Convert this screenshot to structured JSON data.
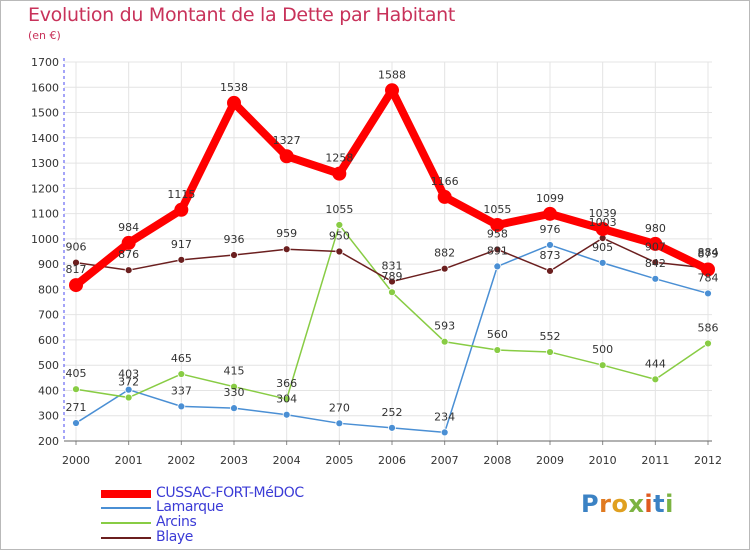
{
  "title": "Evolution du Montant de la Dette par Habitant",
  "subtitle": "(en €)",
  "logo_text": "Proxiti",
  "colors": {
    "title": "#c8325a",
    "legend_text": "#3b3bd6",
    "axis_text": "#333333",
    "grid": "#e4e4e4",
    "y_axis": "#4a4af0"
  },
  "chart_data": {
    "type": "line",
    "x": [
      "2000",
      "2001",
      "2002",
      "2003",
      "2004",
      "2005",
      "2006",
      "2007",
      "2008",
      "2009",
      "2010",
      "2011",
      "2012"
    ],
    "ylim": [
      200,
      1700
    ],
    "yticks": [
      200,
      300,
      400,
      500,
      600,
      700,
      800,
      900,
      1000,
      1100,
      1200,
      1300,
      1400,
      1500,
      1600,
      1700
    ],
    "grid": true,
    "legend_position": "bottom-left",
    "series": [
      {
        "name": "CUSSAC-FORT-MéDOC",
        "color": "#ff0000",
        "emphasis": true,
        "values": [
          817,
          984,
          1115,
          1538,
          1327,
          1258,
          1588,
          1166,
          1055,
          1099,
          1039,
          980,
          879
        ]
      },
      {
        "name": "Lamarque",
        "color": "#4a8fd4",
        "values": [
          271,
          403,
          337,
          330,
          304,
          270,
          252,
          234,
          891,
          976,
          905,
          842,
          784
        ]
      },
      {
        "name": "Arcins",
        "color": "#88cc44",
        "values": [
          405,
          372,
          465,
          415,
          366,
          1055,
          789,
          593,
          560,
          552,
          500,
          444,
          586
        ]
      },
      {
        "name": "Blaye",
        "color": "#6b1f1f",
        "values": [
          906,
          876,
          917,
          936,
          959,
          950,
          831,
          882,
          958,
          873,
          1003,
          907,
          884
        ]
      }
    ]
  }
}
